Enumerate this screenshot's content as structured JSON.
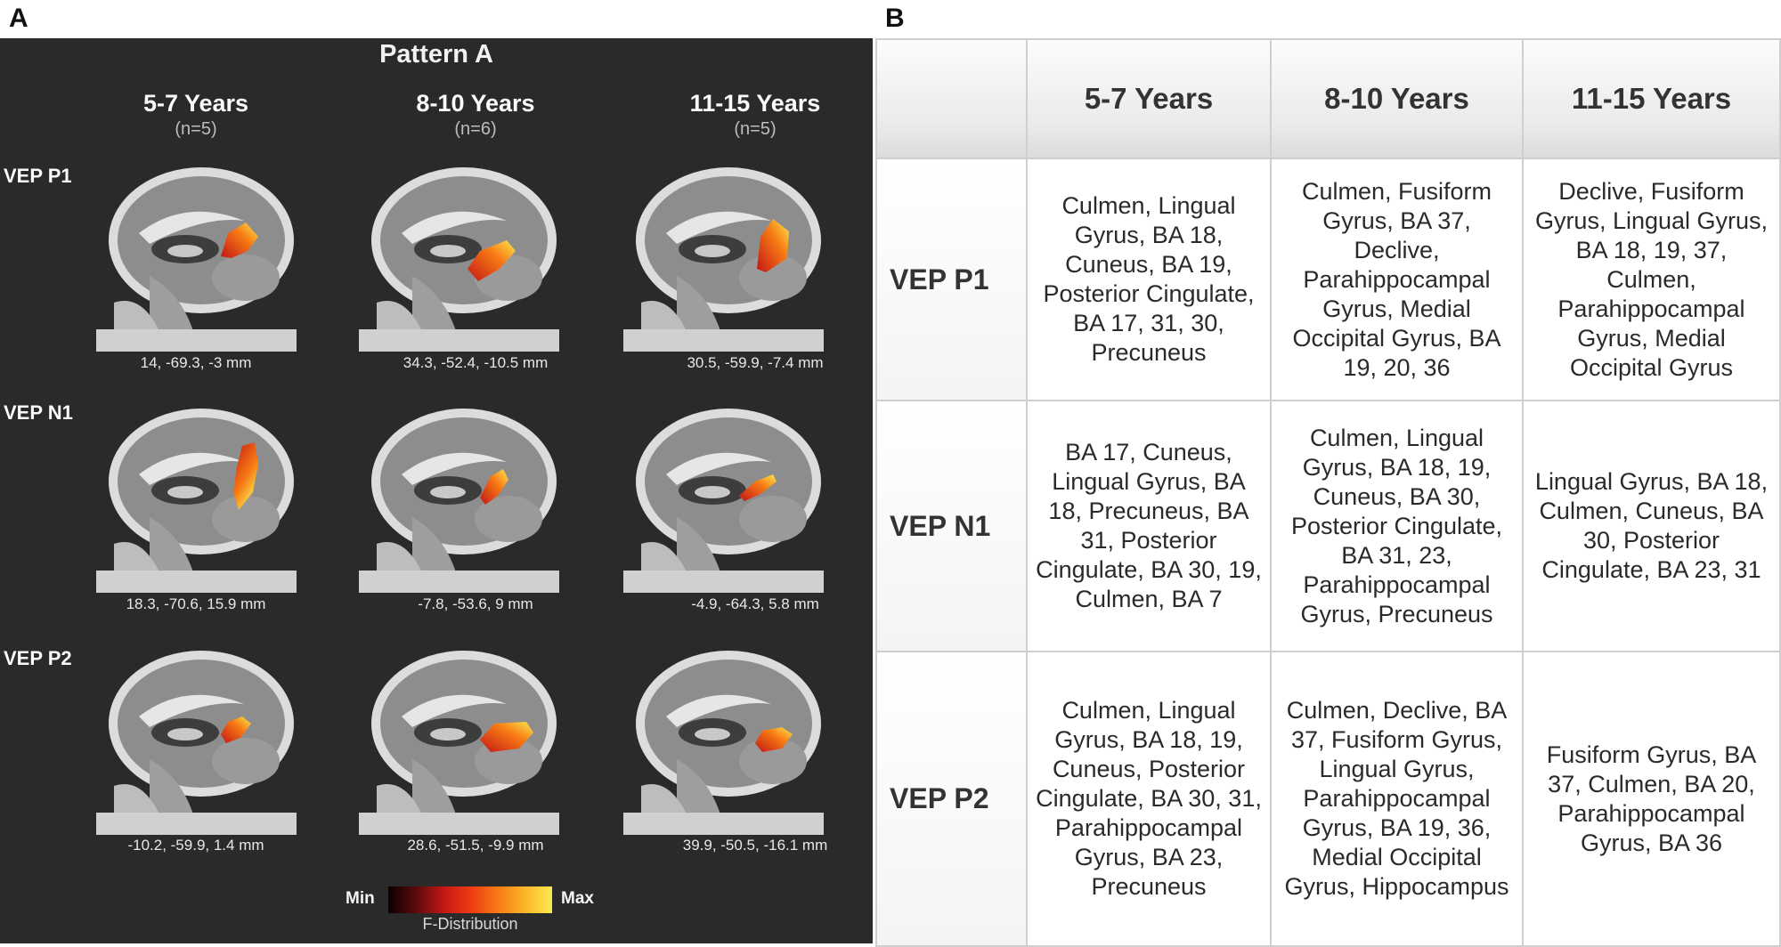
{
  "panel_a": {
    "letter": "A",
    "title": "Pattern A",
    "columns": [
      {
        "label": "5-7 Years",
        "n": "(n=5)"
      },
      {
        "label": "8-10 Years",
        "n": "(n=6)"
      },
      {
        "label": "11-15 Years",
        "n": "(n=5)"
      }
    ],
    "rows": [
      {
        "label": "VEP P1",
        "coords": [
          "14, -69.3, -3 mm",
          "34.3, -52.4, -10.5 mm",
          "30.5, -59.9, -7.4 mm"
        ]
      },
      {
        "label": "VEP N1",
        "coords": [
          "18.3, -70.6, 15.9 mm",
          "-7.8, -53.6, 9 mm",
          "-4.9, -64.3, 5.8 mm"
        ]
      },
      {
        "label": "VEP P2",
        "coords": [
          "-10.2, -59.9, 1.4 mm",
          "28.6, -51.5, -9.9 mm",
          "39.9, -50.5, -16.1 mm"
        ]
      }
    ],
    "scale": {
      "min": "Min",
      "max": "Max",
      "caption": "F-Distribution"
    }
  },
  "panel_b": {
    "letter": "B",
    "columns": [
      "5-7 Years",
      "8-10 Years",
      "11-15 Years"
    ],
    "rows": [
      {
        "label": "VEP P1",
        "cells": [
          "Culmen, Lingual Gyrus, BA 18, Cuneus, BA 19, Posterior Cingulate, BA 17, 31, 30, Precuneus",
          "Culmen, Fusiform Gyrus, BA 37, Declive, Parahippocampal Gyrus, Medial Occipital Gyrus, BA 19, 20, 36",
          "Declive, Fusiform Gyrus, Lingual Gyrus, BA 18, 19, 37, Culmen, Parahippocampal Gyrus, Medial Occipital Gyrus"
        ]
      },
      {
        "label": "VEP N1",
        "cells": [
          "BA 17, Cuneus, Lingual Gyrus, BA 18, Precuneus, BA 31, Posterior Cingulate, BA 30, 19, Culmen, BA 7",
          "Culmen, Lingual Gyrus, BA 18, 19, Cuneus, BA 30, Posterior Cingulate, BA 31, 23, Parahippocampal Gyrus, Precuneus",
          "Lingual Gyrus, BA 18, Culmen, Cuneus, BA 30, Posterior Cingulate, BA 23, 31"
        ]
      },
      {
        "label": "VEP P2",
        "cells": [
          "Culmen, Lingual Gyrus, BA 18, 19, Cuneus, Posterior Cingulate, BA 30, 31, Parahippocampal Gyrus, BA 23, Precuneus",
          "Culmen, Declive, BA 37, Fusiform Gyrus, Lingual Gyrus, Parahippocampal Gyrus, BA 19, 36, Medial Occipital Gyrus, Hippocampus",
          "Fusiform Gyrus, BA 37, Culmen, BA 20, Parahippocampal Gyrus, BA 36"
        ]
      }
    ]
  },
  "colors": {
    "panel_a_background": "#2a2a2a",
    "activation_low": "#c21616",
    "activation_high": "#fbea50"
  }
}
